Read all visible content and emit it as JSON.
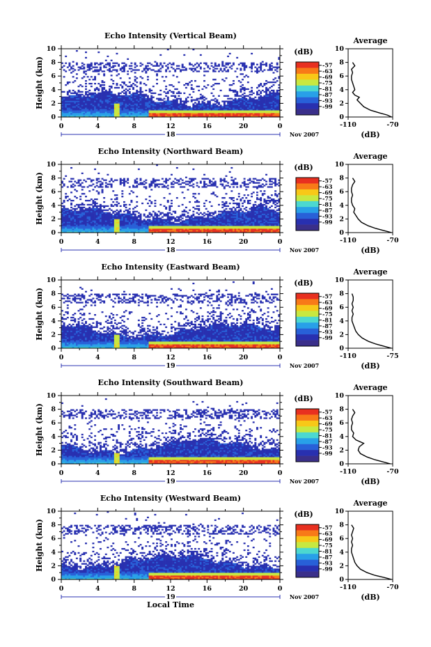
{
  "colorbar_unit": "(dB)",
  "colorbar_ticks": [
    "-57",
    "-63",
    "-69",
    "-75",
    "-81",
    "-87",
    "-93",
    "-99"
  ],
  "colorbar_colors": [
    "#e83020",
    "#f87a18",
    "#f8c818",
    "#c8e840",
    "#4cd8d0",
    "#28a0e8",
    "#2860d8",
    "#2830b0",
    "#3a2f8a"
  ],
  "date_label": "Nov 2007",
  "x_title": "Local Time",
  "y_title": "Height (km)",
  "avg_title": "Average",
  "avg_x_unit": "(dB)",
  "chart_data": [
    {
      "type": "heatmap",
      "title": "Echo Intensity (Vertical Beam)",
      "xlabel": "",
      "ylabel": "Height (km)",
      "xlim": [
        0,
        24
      ],
      "ylim": [
        0,
        10
      ],
      "x_ticks": [
        "0",
        "4",
        "8",
        "12",
        "16",
        "20",
        "0"
      ],
      "y_ticks": [
        "0",
        "2",
        "4",
        "6",
        "8",
        "10"
      ],
      "date_marker": "18",
      "avg_profile": {
        "xlim": [
          -110,
          -70
        ],
        "x_ticks": [
          "-110",
          "-70"
        ],
        "height_km": [
          0.0,
          0.3,
          0.6,
          1.0,
          1.5,
          2.0,
          2.5,
          2.9,
          3.2,
          3.6,
          4.0,
          4.5,
          5.0,
          5.5,
          6.0,
          6.5,
          7.0,
          7.5,
          8.0
        ],
        "db": [
          -71,
          -75,
          -82,
          -90,
          -96,
          -99,
          -102,
          -100,
          -104,
          -106,
          -104,
          -105,
          -106,
          -107,
          -107,
          -106,
          -107,
          -104,
          -106
        ]
      }
    },
    {
      "type": "heatmap",
      "title": "Echo Intensity (Northward Beam)",
      "xlabel": "",
      "ylabel": "Height (km)",
      "xlim": [
        0,
        24
      ],
      "ylim": [
        0,
        10
      ],
      "x_ticks": [
        "0",
        "4",
        "8",
        "12",
        "16",
        "20",
        "0"
      ],
      "y_ticks": [
        "0",
        "2",
        "4",
        "6",
        "8",
        "10"
      ],
      "date_marker": "18",
      "avg_profile": {
        "xlim": [
          -110,
          -70
        ],
        "x_ticks": [
          "-110",
          "-70"
        ],
        "height_km": [
          0.0,
          0.3,
          0.6,
          1.0,
          1.5,
          2.0,
          2.5,
          3.0,
          3.5,
          4.0,
          4.5,
          5.0,
          5.5,
          6.0,
          6.5,
          7.0,
          7.5,
          8.0
        ],
        "db": [
          -71,
          -78,
          -85,
          -92,
          -98,
          -101,
          -103,
          -105,
          -104,
          -106,
          -107,
          -107,
          -106,
          -107,
          -107,
          -106,
          -104,
          -106
        ]
      }
    },
    {
      "type": "heatmap",
      "title": "Echo Intensity (Eastward Beam)",
      "xlabel": "",
      "ylabel": "Height (km)",
      "xlim": [
        0,
        24
      ],
      "ylim": [
        0,
        10
      ],
      "x_ticks": [
        "0",
        "4",
        "8",
        "12",
        "16",
        "20",
        "0"
      ],
      "y_ticks": [
        "0",
        "2",
        "4",
        "6",
        "8",
        "10"
      ],
      "date_marker": "19",
      "avg_profile": {
        "xlim": [
          -110,
          -75
        ],
        "x_ticks": [
          "-110",
          "-75"
        ],
        "height_km": [
          0.0,
          0.3,
          0.6,
          1.0,
          1.5,
          2.0,
          2.5,
          3.0,
          3.5,
          4.0,
          4.5,
          5.0,
          5.5,
          6.0,
          6.5,
          7.0,
          7.5,
          8.0
        ],
        "db": [
          -76,
          -82,
          -88,
          -94,
          -99,
          -102,
          -104,
          -105,
          -106,
          -107,
          -107,
          -106,
          -107,
          -106,
          -107,
          -106,
          -106,
          -107
        ]
      }
    },
    {
      "type": "heatmap",
      "title": "Echo Intensity (Southward Beam)",
      "xlabel": "",
      "ylabel": "Height (km)",
      "xlim": [
        0,
        24
      ],
      "ylim": [
        0,
        10
      ],
      "x_ticks": [
        "0",
        "4",
        "8",
        "12",
        "16",
        "20",
        "0"
      ],
      "y_ticks": [
        "0",
        "2",
        "4",
        "6",
        "8",
        "10"
      ],
      "date_marker": "19",
      "avg_profile": {
        "xlim": [
          -110,
          -70
        ],
        "x_ticks": [
          "-110",
          "-70"
        ],
        "height_km": [
          0.0,
          0.3,
          0.6,
          1.0,
          1.5,
          2.0,
          2.5,
          3.0,
          3.5,
          4.0,
          4.5,
          5.0,
          5.5,
          6.0,
          6.5,
          7.0,
          7.5,
          8.0
        ],
        "db": [
          -72,
          -79,
          -86,
          -93,
          -99,
          -101,
          -100,
          -96,
          -103,
          -106,
          -105,
          -107,
          -107,
          -106,
          -107,
          -106,
          -104,
          -106
        ]
      }
    },
    {
      "type": "heatmap",
      "title": "Echo Intensity (Westward Beam)",
      "xlabel": "Local Time",
      "ylabel": "Height (km)",
      "xlim": [
        0,
        24
      ],
      "ylim": [
        0,
        10
      ],
      "x_ticks": [
        "0",
        "4",
        "8",
        "12",
        "16",
        "20",
        "0"
      ],
      "y_ticks": [
        "0",
        "2",
        "4",
        "6",
        "8",
        "10"
      ],
      "date_marker": "19",
      "avg_profile": {
        "xlim": [
          -110,
          -70
        ],
        "x_ticks": [
          "-110",
          "-70"
        ],
        "height_km": [
          0.0,
          0.3,
          0.6,
          1.0,
          1.5,
          2.0,
          2.5,
          3.0,
          3.5,
          4.0,
          4.5,
          5.0,
          5.5,
          6.0,
          6.5,
          7.0,
          7.5,
          8.0
        ],
        "db": [
          -71,
          -78,
          -86,
          -93,
          -99,
          -102,
          -104,
          -105,
          -106,
          -107,
          -107,
          -106,
          -107,
          -106,
          -107,
          -106,
          -105,
          -107
        ]
      }
    }
  ]
}
